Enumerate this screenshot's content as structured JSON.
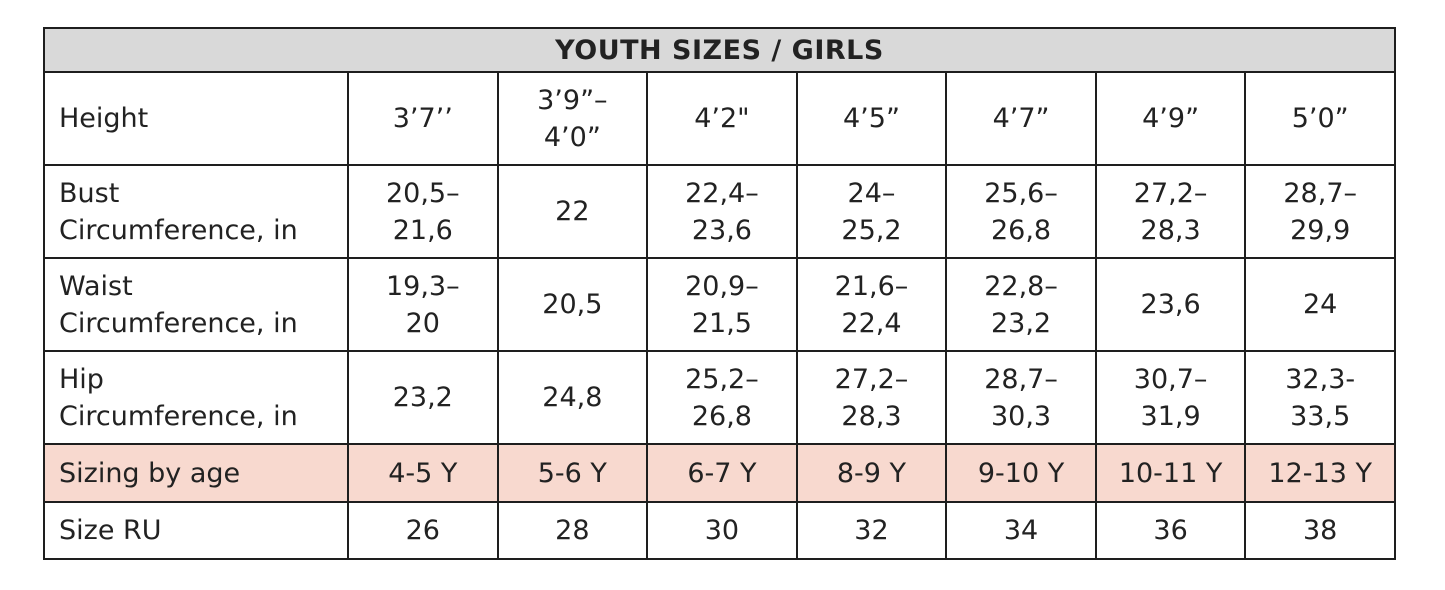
{
  "header": {
    "title": "YOUTH SIZES / GIRLS"
  },
  "table": {
    "rows": [
      [
        "Height",
        "3’7’’",
        "3’9”–\n4’0”",
        "4’2\"",
        "4’5”",
        "4’7”",
        "4’9”",
        "5’0”"
      ],
      [
        "Bust\nCircumference, in",
        "20,5–\n21,6",
        "22",
        "22,4–\n23,6",
        "24–\n25,2",
        "25,6–\n26,8",
        "27,2–\n28,3",
        "28,7–\n29,9"
      ],
      [
        "Waist\nCircumference, in",
        "19,3–\n20",
        "20,5",
        "20,9–\n21,5",
        "21,6–\n22,4",
        "22,8–\n23,2",
        "23,6",
        "24"
      ],
      [
        "Hip\nCircumference, in",
        "23,2",
        "24,8",
        "25,2–\n26,8",
        "27,2–\n28,3",
        "28,7–\n30,3",
        "30,7–\n31,9",
        "32,3-\n33,5"
      ],
      [
        "Sizing by age",
        "4-5 Y",
        "5-6 Y",
        "6-7 Y",
        "8-9 Y",
        "9-10 Y",
        "10-11 Y",
        "12-13 Y"
      ],
      [
        "Size RU",
        "26",
        "28",
        "30",
        "32",
        "34",
        "36",
        "38"
      ]
    ]
  }
}
